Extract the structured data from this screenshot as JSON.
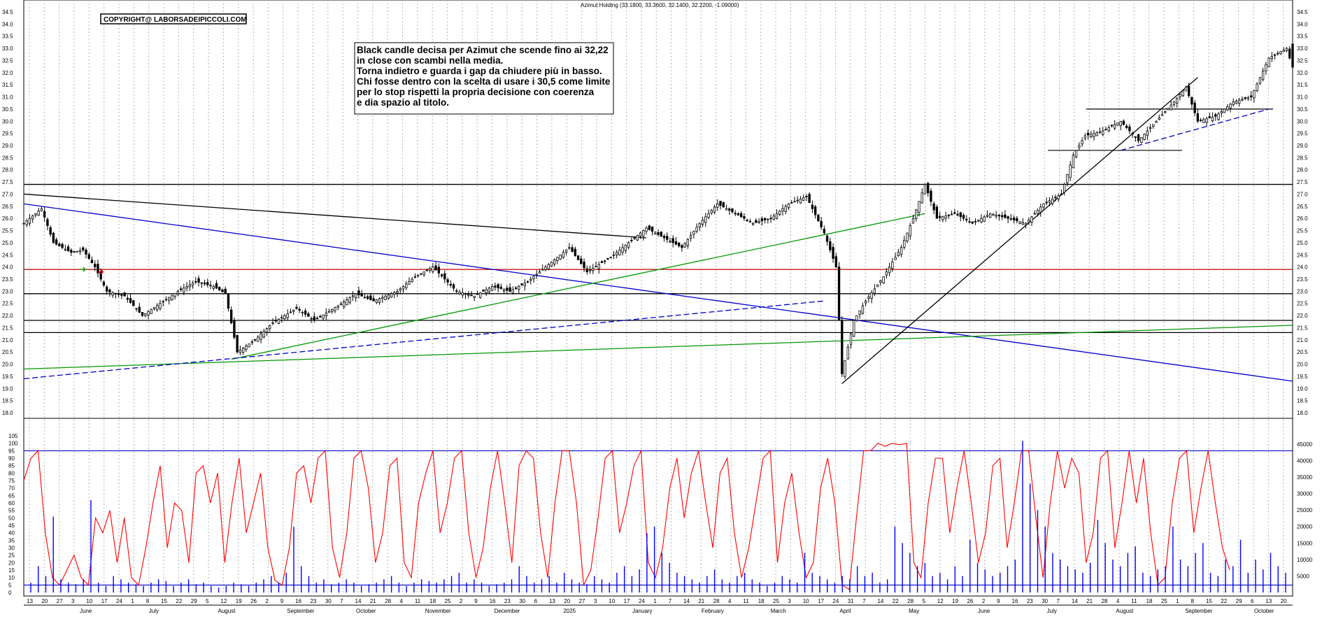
{
  "title": "Azimut Holding (33.1800, 33.3600, 32.1400, 32.2200, -1.09000)",
  "copyright": "COPYRIGHT@ LABORSADEIPICCOLI.COM",
  "annotation_lines": [
    "Black candle decisa per Azimut che scende fino ai 32,22",
    "in close con scambi nella media.",
    "Torna indietro e guarda i gap da chiudere più in basso.",
    "Chi fosse dentro con la scelta di usare i 30,5 come limite",
    "per lo stop rispetti la propria decisione con coerenza",
    "e dia spazio al titolo."
  ],
  "colors": {
    "price_line": "#000000",
    "blue_line": "#0000cc",
    "green_line": "#009900",
    "red_line": "#cc0000",
    "oscillator": "#ff0000",
    "volume": "#0000ff",
    "grid": "#b4b4b4"
  },
  "chart_data": [
    {
      "type": "candlestick",
      "panel": "price",
      "title": "Azimut Holding (33.1800, 33.3600, 32.1400, 32.2200, -1.09000)",
      "ylim": [
        18.0,
        34.5
      ],
      "y_ticks": [
        18.0,
        18.5,
        19.0,
        19.5,
        20.0,
        20.5,
        21.0,
        21.5,
        22.0,
        22.5,
        23.0,
        23.5,
        24.0,
        24.5,
        25.0,
        25.5,
        26.0,
        26.5,
        27.0,
        27.5,
        28.0,
        28.5,
        29.0,
        29.5,
        30.0,
        30.5,
        31.0,
        31.5,
        32.0,
        32.5,
        33.0,
        33.5,
        34.0,
        34.5
      ],
      "last_candle": {
        "open": 33.18,
        "high": 33.36,
        "low": 32.14,
        "close": 32.22,
        "change": -1.09
      },
      "close_path": [
        [
          0,
          25.8
        ],
        [
          6,
          26.4
        ],
        [
          10,
          25.0
        ],
        [
          16,
          24.6
        ],
        [
          20,
          24.7
        ],
        [
          24,
          24.0
        ],
        [
          28,
          23.0
        ],
        [
          34,
          22.8
        ],
        [
          40,
          22.0
        ],
        [
          46,
          22.5
        ],
        [
          52,
          23.0
        ],
        [
          58,
          23.4
        ],
        [
          64,
          23.2
        ],
        [
          68,
          22.9
        ],
        [
          72,
          20.5
        ],
        [
          78,
          21.0
        ],
        [
          84,
          21.7
        ],
        [
          92,
          22.3
        ],
        [
          98,
          21.8
        ],
        [
          106,
          22.4
        ],
        [
          112,
          22.9
        ],
        [
          118,
          22.6
        ],
        [
          126,
          23.0
        ],
        [
          132,
          23.6
        ],
        [
          138,
          24.0
        ],
        [
          146,
          23.0
        ],
        [
          152,
          22.8
        ],
        [
          158,
          23.2
        ],
        [
          164,
          23.0
        ],
        [
          170,
          23.4
        ],
        [
          176,
          24.0
        ],
        [
          184,
          24.8
        ],
        [
          190,
          23.8
        ],
        [
          198,
          24.4
        ],
        [
          204,
          25.0
        ],
        [
          210,
          25.6
        ],
        [
          216,
          25.2
        ],
        [
          222,
          24.8
        ],
        [
          228,
          25.8
        ],
        [
          234,
          26.6
        ],
        [
          240,
          26.2
        ],
        [
          246,
          25.8
        ],
        [
          252,
          26.0
        ],
        [
          258,
          26.6
        ],
        [
          264,
          26.9
        ],
        [
          270,
          25.4
        ],
        [
          274,
          24.0
        ],
        [
          276,
          19.6
        ],
        [
          280,
          21.8
        ],
        [
          284,
          22.6
        ],
        [
          290,
          23.6
        ],
        [
          296,
          24.8
        ],
        [
          300,
          26.0
        ],
        [
          304,
          27.4
        ],
        [
          308,
          26.0
        ],
        [
          314,
          26.2
        ],
        [
          320,
          25.8
        ],
        [
          326,
          26.2
        ],
        [
          332,
          26.0
        ],
        [
          338,
          25.8
        ],
        [
          344,
          26.6
        ],
        [
          350,
          27.0
        ],
        [
          354,
          28.6
        ],
        [
          358,
          29.4
        ],
        [
          364,
          29.6
        ],
        [
          370,
          30.0
        ],
        [
          376,
          29.2
        ],
        [
          382,
          30.0
        ],
        [
          388,
          30.8
        ],
        [
          392,
          31.4
        ],
        [
          396,
          30.0
        ],
        [
          402,
          30.2
        ],
        [
          408,
          30.8
        ],
        [
          414,
          31.0
        ],
        [
          420,
          32.6
        ],
        [
          426,
          33.0
        ],
        [
          428,
          32.2
        ]
      ],
      "support_levels": [
        27.4,
        23.9,
        22.9,
        21.8,
        21.3
      ],
      "trendlines": [
        {
          "name": "",
          "color": "#0000cc",
          "from": [
            0,
            26.6
          ],
          "to": [
            428,
            19.3
          ]
        },
        {
          "name": "",
          "color": "#009900",
          "from": [
            0,
            19.8
          ],
          "to": [
            428,
            21.6
          ]
        },
        {
          "name": "",
          "color": "#009900",
          "from": [
            70,
            20.2
          ],
          "to": [
            304,
            26.2
          ]
        },
        {
          "name": "",
          "color": "#0000cc",
          "dashed": true,
          "from": [
            0,
            19.4
          ],
          "to": [
            270,
            22.6
          ]
        },
        {
          "name": "",
          "color": "#000000",
          "from": [
            0,
            27.0
          ],
          "to": [
            210,
            25.2
          ]
        },
        {
          "name": "",
          "color": "#000000",
          "from": [
            276,
            19.2
          ],
          "to": [
            396,
            31.8
          ]
        },
        {
          "name": "",
          "color": "#0000cc",
          "dashed": true,
          "from": [
            370,
            28.8
          ],
          "to": [
            420,
            30.5
          ]
        }
      ],
      "arrow_markers": [
        {
          "x": 20,
          "y": 23.9,
          "color": "#009900"
        },
        {
          "x": 26,
          "y": 23.8,
          "color": "#cc0000"
        }
      ]
    },
    {
      "type": "line",
      "panel": "oscillator",
      "ylim": [
        0,
        105
      ],
      "y_ticks": [
        0,
        5,
        10,
        15,
        20,
        25,
        30,
        35,
        40,
        45,
        50,
        55,
        60,
        65,
        70,
        75,
        80,
        85,
        90,
        95,
        100,
        105
      ],
      "reference_lines": [
        95,
        5
      ],
      "series": [
        {
          "name": "",
          "color": "#ff0000",
          "values": [
            75,
            90,
            95,
            40,
            10,
            5,
            15,
            25,
            10,
            5,
            50,
            40,
            55,
            20,
            50,
            10,
            5,
            30,
            60,
            85,
            30,
            60,
            55,
            20,
            80,
            85,
            60,
            80,
            20,
            60,
            90,
            40,
            60,
            80,
            30,
            8,
            5,
            30,
            80,
            85,
            60,
            90,
            95,
            30,
            10,
            40,
            90,
            95,
            70,
            20,
            40,
            85,
            90,
            20,
            10,
            60,
            80,
            95,
            40,
            60,
            90,
            95,
            40,
            10,
            30,
            70,
            95,
            60,
            20,
            85,
            95,
            90,
            40,
            10,
            60,
            95,
            95,
            60,
            5,
            15,
            50,
            90,
            95,
            40,
            60,
            85,
            95,
            20,
            10,
            30,
            70,
            90,
            50,
            80,
            95,
            60,
            30,
            80,
            90,
            40,
            10,
            30,
            60,
            90,
            95,
            20,
            60,
            80,
            40,
            10,
            20,
            70,
            90,
            60,
            5,
            2,
            50,
            95,
            95,
            100,
            98,
            100,
            99,
            100,
            20,
            10,
            60,
            90,
            90,
            40,
            70,
            95,
            60,
            20,
            40,
            85,
            90,
            30,
            60,
            95,
            95,
            50,
            10,
            60,
            95,
            70,
            90,
            80,
            20,
            40,
            90,
            95,
            30,
            60,
            95,
            60,
            90,
            40,
            5,
            10,
            60,
            90,
            95,
            40,
            70,
            95,
            60,
            30,
            15
          ]
        }
      ]
    },
    {
      "type": "bar",
      "panel": "volume",
      "ylim": [
        0,
        47500
      ],
      "y_ticks": [
        5000,
        10000,
        15000,
        20000,
        25000,
        30000,
        35000,
        40000,
        45000
      ],
      "reference_lines": [
        5000
      ],
      "series": [
        {
          "name": "",
          "color": "#0000ff",
          "values": [
            3000,
            8000,
            5000,
            23000,
            4000,
            3000,
            2500,
            4000,
            28000,
            3000,
            2000,
            5000,
            4000,
            3000,
            2500,
            2000,
            3000,
            4000,
            3500,
            2000,
            3000,
            4000,
            2500,
            3000,
            2000,
            1500,
            2000,
            3000,
            2500,
            2000,
            3000,
            4000,
            5000,
            3000,
            6000,
            20000,
            8000,
            5000,
            3000,
            4000,
            2500,
            3000,
            4000,
            3000,
            2000,
            2500,
            3000,
            4000,
            5000,
            3000,
            2000,
            3000,
            4000,
            3500,
            3000,
            4000,
            5000,
            6000,
            3000,
            4000,
            3000,
            2000,
            2500,
            3000,
            4000,
            8000,
            5000,
            3000,
            4000,
            5000,
            3000,
            6000,
            4000,
            3000,
            2500,
            5000,
            4000,
            3000,
            6000,
            8000,
            5000,
            7000,
            18000,
            20000,
            12000,
            9000,
            6000,
            5000,
            4000,
            3000,
            5000,
            7000,
            4000,
            3000,
            5000,
            6000,
            4000,
            3000,
            2000,
            3000,
            5000,
            4000,
            3000,
            12000,
            6000,
            5000,
            4000,
            3000,
            5000,
            4000,
            8000,
            5000,
            6000,
            3000,
            4000,
            20000,
            15000,
            12000,
            8000,
            9000,
            5000,
            6000,
            4000,
            8000,
            5000,
            16000,
            9000,
            7000,
            5000,
            6000,
            8000,
            10000,
            46000,
            33000,
            25000,
            20000,
            12000,
            10000,
            8000,
            7000,
            6000,
            9000,
            22000,
            15000,
            10000,
            8000,
            12000,
            14000,
            6000,
            5000,
            7000,
            8000,
            20000,
            10000,
            8000,
            12000,
            15000,
            6000,
            5000,
            10000,
            8000,
            16000,
            6000,
            10000,
            7000,
            12000,
            8000,
            6000
          ]
        }
      ]
    }
  ],
  "date_axis": {
    "day_labels": [
      "13",
      "20",
      "27",
      "3",
      "10",
      "17",
      "24",
      "1",
      "8",
      "15",
      "22",
      "29",
      "5",
      "12",
      "19",
      "26",
      "2",
      "9",
      "16",
      "23",
      "30",
      "7",
      "14",
      "21",
      "28",
      "4",
      "11",
      "18",
      "25",
      "2",
      "9",
      "16",
      "23",
      "30",
      "6",
      "13",
      "20",
      "27",
      "3",
      "10",
      "17",
      "24",
      "1",
      "7",
      "14",
      "21",
      "28",
      "4",
      "11",
      "18",
      "25",
      "3",
      "10",
      "17",
      "24",
      "31",
      "7",
      "14",
      "22",
      "28",
      "5",
      "12",
      "19",
      "26",
      "2",
      "9",
      "16",
      "23",
      "30",
      "7",
      "14",
      "21",
      "28",
      "4",
      "11",
      "18",
      "25",
      "1",
      "8",
      "15",
      "22",
      "29",
      "6",
      "13",
      "20"
    ],
    "month_labels": [
      "June",
      "July",
      "August",
      "September",
      "October",
      "November",
      "December",
      "2025",
      "January",
      "February",
      "March",
      "April",
      "May",
      "June",
      "July",
      "August",
      "September",
      "October"
    ]
  },
  "price_axis_label": "18.0"
}
